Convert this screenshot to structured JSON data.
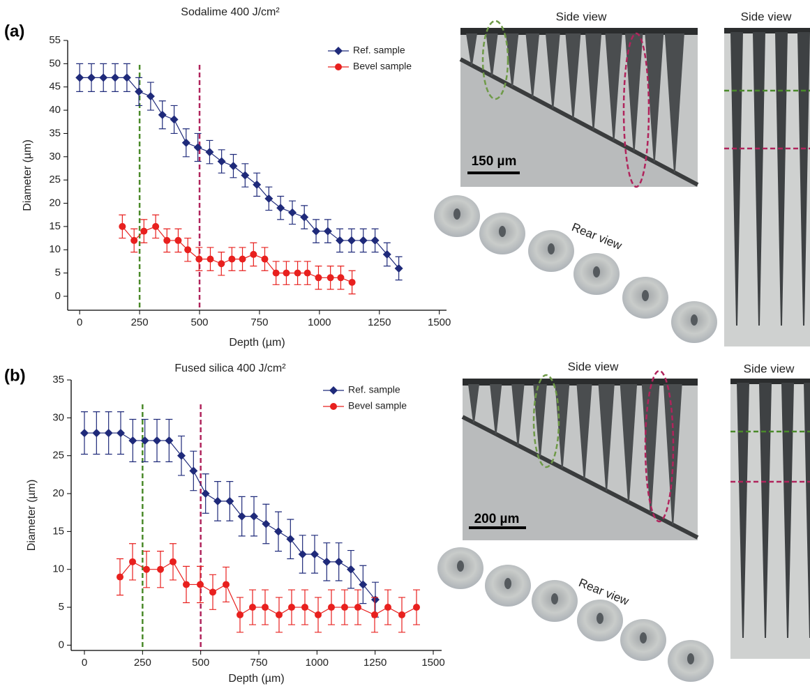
{
  "chart_data": [
    {
      "type": "line",
      "title": "Sodalime 400 J/cm²",
      "xlabel": "Depth (µm)",
      "ylabel": "Diameter (µm)",
      "xlim": [
        -50,
        1530
      ],
      "ylim": [
        -3,
        55
      ],
      "xticks": [
        0,
        250,
        500,
        750,
        1000,
        1250,
        1500
      ],
      "yticks": [
        0,
        5,
        10,
        15,
        20,
        25,
        30,
        35,
        40,
        45,
        50,
        55
      ],
      "legend": "upper right",
      "vlines": [
        {
          "x": 250,
          "color": "#4a8a2a"
        },
        {
          "x": 500,
          "color": "#b0245c"
        }
      ],
      "series": [
        {
          "name": "Ref. sample",
          "color": "#1f2a7a",
          "marker": "diamond",
          "x": [
            0,
            49,
            99,
            148,
            197,
            247,
            296,
            345,
            394,
            444,
            493,
            542,
            592,
            641,
            690,
            739,
            789,
            838,
            887,
            937,
            986,
            1035,
            1085,
            1134,
            1183,
            1232,
            1282,
            1331
          ],
          "values": [
            47,
            47,
            47,
            47,
            47,
            44,
            43,
            39,
            38,
            33,
            32,
            31,
            29,
            28,
            26,
            24,
            21,
            19,
            18,
            17,
            14,
            14,
            12,
            12,
            12,
            12,
            9,
            6
          ],
          "errors": [
            3,
            3,
            3,
            3,
            3,
            3,
            3,
            3,
            3,
            3,
            3,
            2.5,
            2.5,
            2.5,
            2.5,
            2.5,
            2.5,
            2.5,
            2.5,
            2.5,
            2.5,
            2.5,
            2.5,
            2.5,
            2.5,
            2.5,
            2.5,
            2.5
          ]
        },
        {
          "name": "Bevel sample",
          "color": "#e8201e",
          "marker": "circle",
          "x": [
            178,
            227,
            268,
            317,
            364,
            411,
            451,
            498,
            545,
            591,
            635,
            679,
            725,
            772,
            819,
            862,
            909,
            950,
            996,
            1046,
            1089,
            1136
          ],
          "values": [
            15,
            12,
            14,
            15,
            12,
            12,
            10,
            8,
            8,
            7,
            8,
            8,
            9,
            8,
            5,
            5,
            5,
            5,
            4,
            4,
            4,
            3
          ],
          "errors": [
            2.5,
            2.5,
            2.5,
            2.5,
            2.5,
            2.5,
            2.5,
            2.5,
            2.5,
            2.5,
            2.5,
            2.5,
            2.5,
            2.5,
            2.5,
            2.5,
            2.5,
            2.5,
            2.5,
            2.5,
            2.5,
            2.5
          ]
        }
      ]
    },
    {
      "type": "line",
      "title": "Fused silica 400 J/cm²",
      "xlabel": "Depth (µm)",
      "ylabel": "Diameter (µm)",
      "xlim": [
        -57,
        1536
      ],
      "ylim": [
        -0.7,
        35
      ],
      "xticks": [
        0,
        250,
        500,
        750,
        1000,
        1250,
        1500
      ],
      "yticks": [
        0,
        5,
        10,
        15,
        20,
        25,
        30,
        35
      ],
      "legend": "upper right",
      "vlines": [
        {
          "x": 250,
          "color": "#4a8a2a"
        },
        {
          "x": 500,
          "color": "#b0245c"
        }
      ],
      "series": [
        {
          "name": "Ref. sample",
          "color": "#1f2a7a",
          "marker": "diamond",
          "x": [
            0,
            52,
            104,
            156,
            208,
            260,
            312,
            364,
            417,
            469,
            521,
            573,
            625,
            677,
            729,
            781,
            834,
            886,
            938,
            990,
            1042,
            1094,
            1146,
            1198,
            1251
          ],
          "values": [
            28,
            28,
            28,
            28,
            27,
            27,
            27,
            27,
            25,
            23,
            20,
            19,
            19,
            17,
            17,
            16,
            15,
            14,
            12,
            12,
            11,
            11,
            10,
            8,
            6
          ],
          "errors": [
            2.8,
            2.8,
            2.8,
            2.8,
            2.8,
            2.8,
            2.8,
            2.8,
            2.6,
            2.6,
            2.6,
            2.6,
            2.6,
            2.6,
            2.6,
            2.6,
            2.6,
            2.6,
            2.5,
            2.5,
            2.5,
            2.5,
            2.5,
            2.5,
            2.3
          ]
        },
        {
          "name": "Bevel sample",
          "color": "#e8201e",
          "marker": "circle",
          "x": [
            153,
            207,
            267,
            327,
            381,
            438,
            498,
            552,
            609,
            669,
            723,
            777,
            837,
            891,
            948,
            1005,
            1062,
            1119,
            1176,
            1248,
            1305,
            1365,
            1428
          ],
          "values": [
            9,
            11,
            10,
            10,
            11,
            8,
            8,
            7,
            8,
            4,
            5,
            5,
            4,
            5,
            5,
            4,
            5,
            5,
            5,
            4,
            5,
            4,
            5
          ],
          "errors": [
            2.4,
            2.4,
            2.4,
            2.4,
            2.4,
            2.4,
            2.4,
            2.3,
            2.3,
            2.3,
            2.3,
            2.3,
            2.3,
            2.3,
            2.3,
            2.3,
            2.3,
            2.3,
            2.3,
            2.3,
            2.3,
            2.3,
            2.3
          ]
        }
      ]
    }
  ],
  "figure": {
    "panel_a": {
      "label": "(a)",
      "side_view": "Side view",
      "side_view_right": "Side view",
      "rear_view": "Rear view",
      "scale": "150 µm"
    },
    "panel_b": {
      "label": "(b)",
      "side_view": "Side view",
      "side_view_right": "Side view",
      "rear_view": "Rear view",
      "scale": "200 µm"
    }
  }
}
